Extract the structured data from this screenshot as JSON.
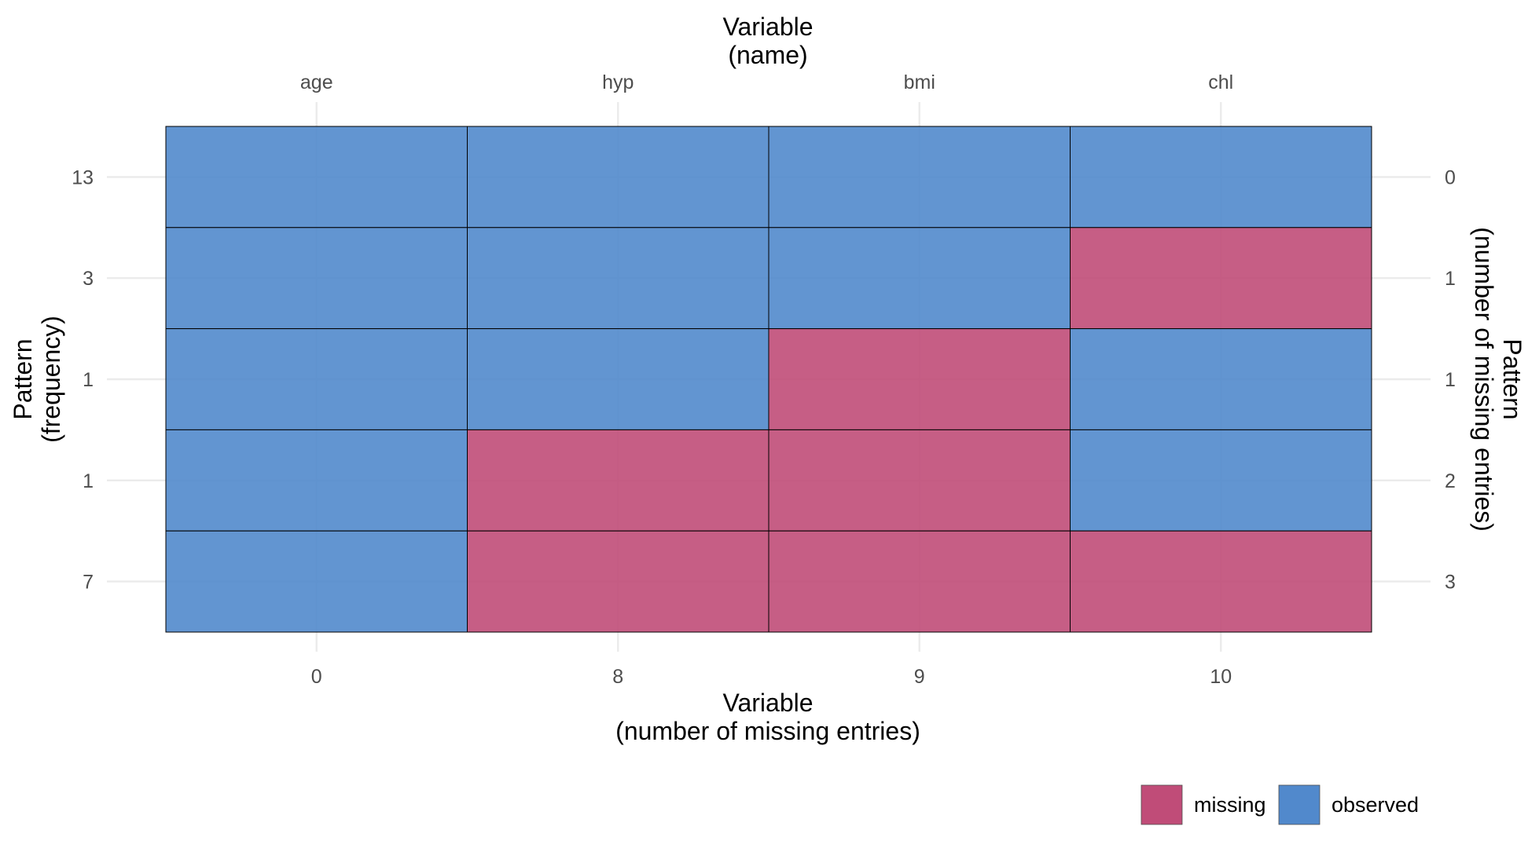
{
  "chart_data": {
    "type": "heatmap",
    "top_axis_title": [
      "Variable",
      "(name)"
    ],
    "bottom_axis_title": [
      "Variable",
      "(number of missing entries)"
    ],
    "left_axis_title": [
      "Pattern",
      "(frequency)"
    ],
    "right_axis_title": [
      "Pattern",
      "(number of missing entries)"
    ],
    "columns": [
      "age",
      "hyp",
      "bmi",
      "chl"
    ],
    "column_missing_counts": [
      "0",
      "8",
      "9",
      "10"
    ],
    "row_frequencies": [
      "13",
      "3",
      "1",
      "1",
      "7"
    ],
    "row_missing_counts": [
      "0",
      "1",
      "1",
      "2",
      "3"
    ],
    "matrix": [
      [
        "observed",
        "observed",
        "observed",
        "observed"
      ],
      [
        "observed",
        "observed",
        "observed",
        "missing"
      ],
      [
        "observed",
        "observed",
        "missing",
        "observed"
      ],
      [
        "observed",
        "missing",
        "missing",
        "observed"
      ],
      [
        "observed",
        "missing",
        "missing",
        "missing"
      ]
    ],
    "legend": [
      {
        "label": "missing",
        "color": "#c04c78"
      },
      {
        "label": "observed",
        "color": "#5189cc"
      }
    ],
    "grid": true,
    "legend_position": "bottom-right"
  }
}
